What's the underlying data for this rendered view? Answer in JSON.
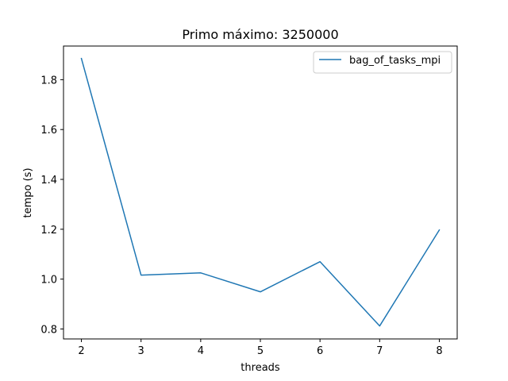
{
  "chart_data": {
    "type": "line",
    "title": "Primo máximo: 3250000",
    "xlabel": "threads",
    "ylabel": "tempo (s)",
    "xlim": [
      1.7,
      8.3
    ],
    "ylim": [
      0.76,
      1.935
    ],
    "xticks": [
      2,
      3,
      4,
      5,
      6,
      7,
      8
    ],
    "yticks": [
      0.8,
      1.0,
      1.2,
      1.4,
      1.6,
      1.8
    ],
    "legend_position": "top-right",
    "series": [
      {
        "name": "bag_of_tasks_mpi",
        "color": "#1f77b4",
        "x": [
          2,
          3,
          4,
          5,
          6,
          7,
          8
        ],
        "y": [
          1.885,
          1.016,
          1.025,
          0.949,
          1.07,
          0.812,
          1.197
        ]
      }
    ]
  }
}
